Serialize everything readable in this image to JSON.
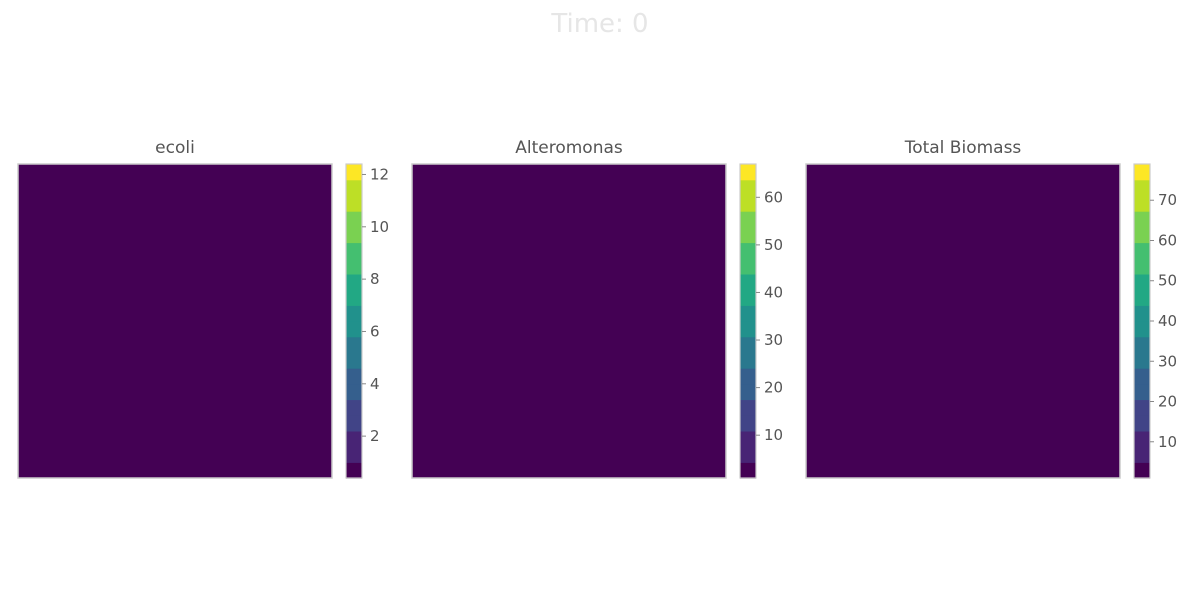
{
  "title": "Time: 0",
  "colors": {
    "frame": "#cccccc",
    "title_text": "#e6e6e6",
    "tick_text": "#555555",
    "viridis": [
      "#440154",
      "#482475",
      "#414487",
      "#355f8d",
      "#2a788e",
      "#21918c",
      "#22a884",
      "#44bf70",
      "#7ad151",
      "#bddf26",
      "#fde725"
    ]
  },
  "chart_data": [
    {
      "type": "heatmap",
      "title": "ecoli",
      "values": [
        [
          0
        ]
      ],
      "colorbar": {
        "min": 0.4,
        "max": 12.4,
        "ticks": [
          2,
          4,
          6,
          8,
          10,
          12
        ],
        "tick_labels": [
          "2",
          "4",
          "6",
          "8",
          "10",
          "12"
        ]
      }
    },
    {
      "type": "heatmap",
      "title": "Alteromonas",
      "values": [
        [
          0
        ]
      ],
      "colorbar": {
        "min": 1.0,
        "max": 67.0,
        "ticks": [
          10,
          20,
          30,
          40,
          50,
          60
        ],
        "tick_labels": [
          "10",
          "20",
          "30",
          "40",
          "50",
          "60"
        ]
      }
    },
    {
      "type": "heatmap",
      "title": "Total Biomass",
      "values": [
        [
          0
        ]
      ],
      "colorbar": {
        "min": 1.0,
        "max": 79.0,
        "ticks": [
          10,
          20,
          30,
          40,
          50,
          60,
          70
        ],
        "tick_labels": [
          "10",
          "20",
          "30",
          "40",
          "50",
          "60",
          "70"
        ]
      }
    }
  ]
}
